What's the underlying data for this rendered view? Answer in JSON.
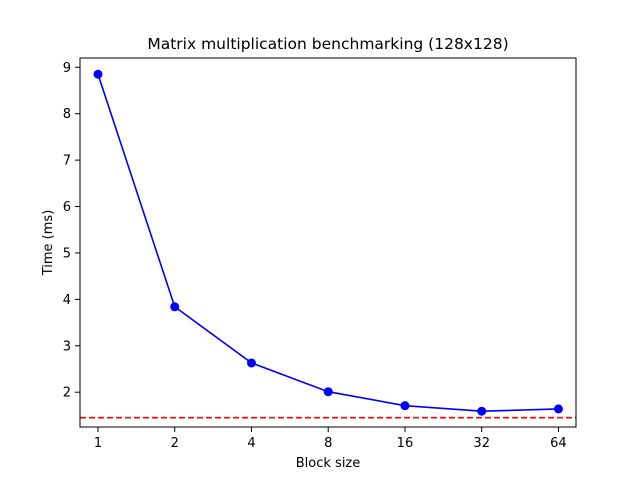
{
  "chart_data": {
    "type": "line",
    "title": "Matrix multiplication benchmarking (128x128)",
    "xlabel": "Block size",
    "ylabel": "Time (ms)",
    "x_scale": "log2",
    "x": [
      1,
      2,
      4,
      8,
      16,
      32,
      64
    ],
    "x_tick_labels": [
      "1",
      "2",
      "4",
      "8",
      "16",
      "32",
      "64"
    ],
    "xlim": [
      0.85,
      75
    ],
    "ylim": [
      1.25,
      9.2
    ],
    "y_ticks": [
      2,
      3,
      4,
      5,
      6,
      7,
      8,
      9
    ],
    "y_tick_labels": [
      "2",
      "3",
      "4",
      "5",
      "6",
      "7",
      "8",
      "9"
    ],
    "grid": false,
    "series": [
      {
        "values": [
          8.85,
          3.84,
          2.63,
          2.01,
          1.71,
          1.59,
          1.64
        ],
        "color": "#0000ff",
        "marker": "circle",
        "line_style": "solid"
      }
    ],
    "reference_line": {
      "y": 1.45,
      "color": "#ff0000",
      "line_style": "dashed"
    }
  }
}
